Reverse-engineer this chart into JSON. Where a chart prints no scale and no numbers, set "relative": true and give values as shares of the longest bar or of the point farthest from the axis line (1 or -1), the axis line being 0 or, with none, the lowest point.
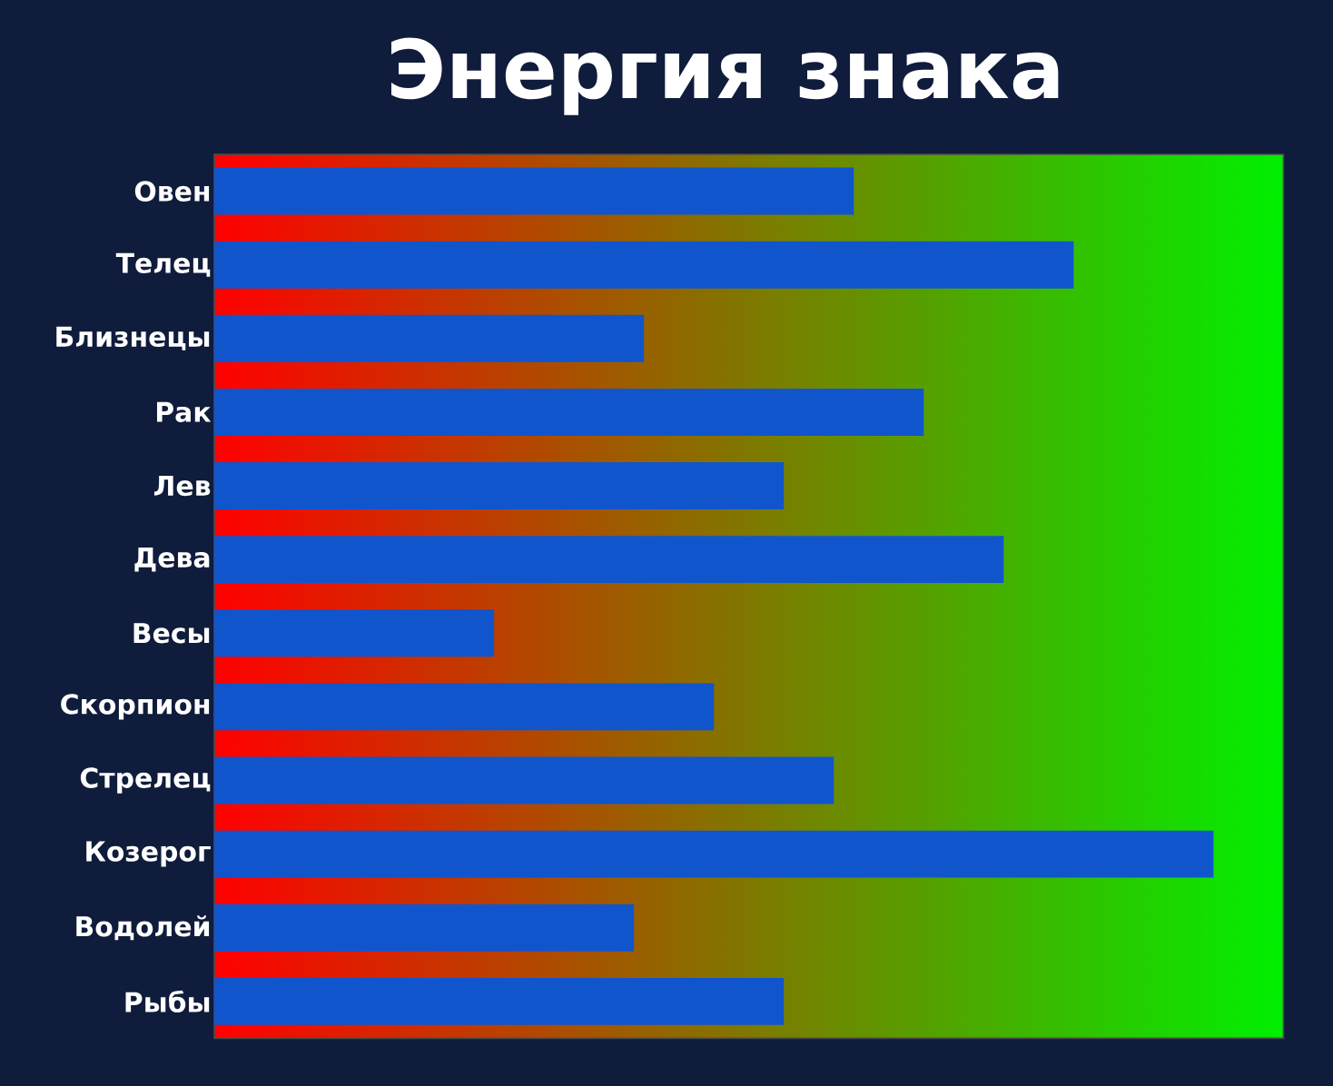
{
  "chart_data": {
    "type": "bar",
    "orientation": "horizontal",
    "relative": true,
    "title": "Энергия знака",
    "categories": [
      "Овен",
      "Телец",
      "Близнецы",
      "Рак",
      "Лев",
      "Дева",
      "Весы",
      "Скорпион",
      "Стрелец",
      "Козерог",
      "Водолей",
      "Рыбы"
    ],
    "values": [
      0.64,
      0.86,
      0.43,
      0.71,
      0.57,
      0.79,
      0.28,
      0.5,
      0.62,
      1,
      0.42,
      0.57
    ],
    "color": "#1155cc"
  }
}
